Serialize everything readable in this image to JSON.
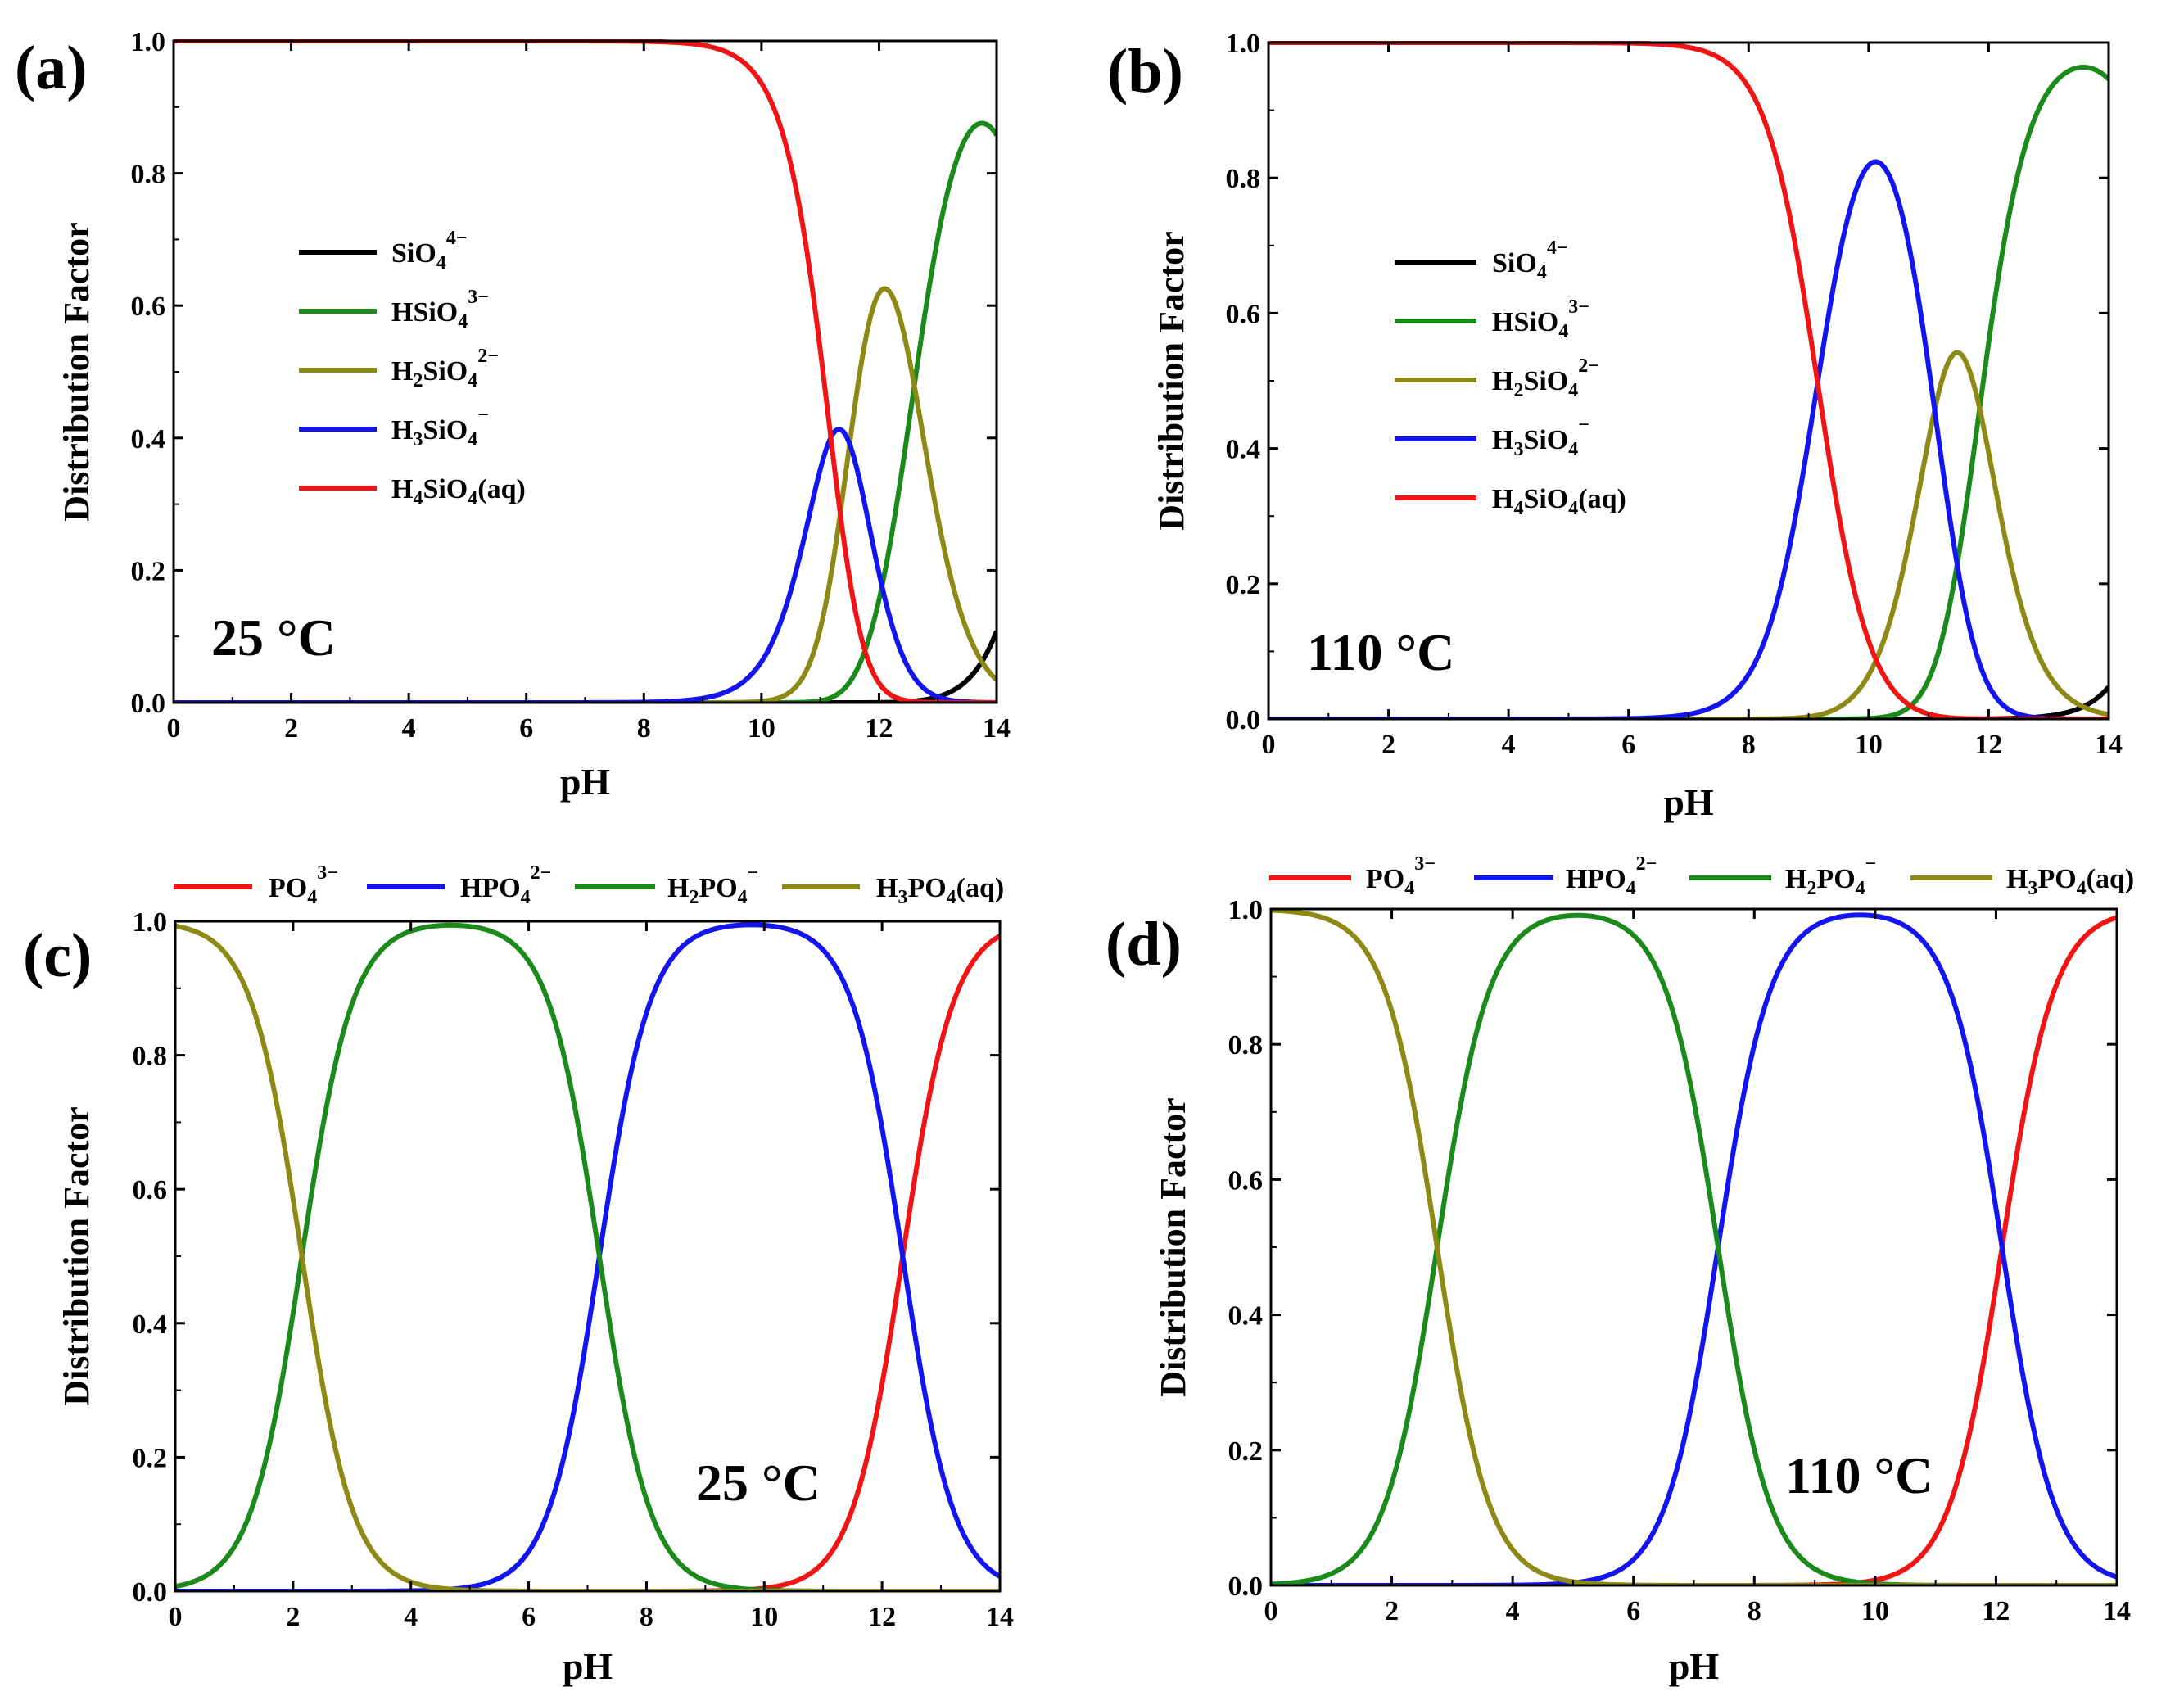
{
  "figure": {
    "panels": [
      {
        "id": "a",
        "label": "(a)",
        "temperature": "25 °C"
      },
      {
        "id": "b",
        "label": "(b)",
        "temperature": "110 °C"
      },
      {
        "id": "c",
        "label": "(c)",
        "temperature": "25 °C"
      },
      {
        "id": "d",
        "label": "(d)",
        "temperature": "110 °C"
      }
    ]
  },
  "chart_data": [
    {
      "panel": "a",
      "type": "line",
      "title": "",
      "panel_label": "(a)",
      "annotation": "25 °C",
      "xlabel": "pH",
      "ylabel": "Distribution Factor",
      "xlim": [
        0,
        14
      ],
      "ylim": [
        0,
        1
      ],
      "xticks": [
        0,
        2,
        4,
        6,
        8,
        10,
        12,
        14
      ],
      "yticks": [
        0.0,
        0.2,
        0.4,
        0.6,
        0.8,
        1.0
      ],
      "ytick_labels": [
        "0.0",
        "0.2",
        "0.4",
        "0.6",
        "0.8",
        "1.0"
      ],
      "legend_position": "middle-left",
      "model": {
        "kind": "speciation",
        "pKa": [
          11.18,
          11.5,
          12.6,
          14.9
        ]
      },
      "series": [
        {
          "name": "SiO4 4−",
          "label": [
            "SiO",
            "4",
            "4−"
          ],
          "species_index": 4,
          "color": "#000000"
        },
        {
          "name": "HSiO4 3−",
          "label": [
            "HSiO",
            "4",
            "3−"
          ],
          "species_index": 3,
          "color": "#1a8a1a"
        },
        {
          "name": "H2SiO4 2−",
          "label": [
            "H",
            "2",
            "SiO",
            "4",
            "2−"
          ],
          "species_index": 2,
          "color": "#8c8a14"
        },
        {
          "name": "H3SiO4 −",
          "label": [
            "H",
            "3",
            "SiO",
            "4",
            "−"
          ],
          "species_index": 1,
          "color": "#1414f0"
        },
        {
          "name": "H4SiO4(aq)",
          "label": [
            "H",
            "4",
            "SiO",
            "4",
            "(aq)"
          ],
          "species_index": 0,
          "color": "#f01414"
        }
      ]
    },
    {
      "panel": "b",
      "type": "line",
      "title": "",
      "panel_label": "(b)",
      "annotation": "110 °C",
      "xlabel": "pH",
      "ylabel": "Distribution Factor",
      "xlim": [
        0,
        14
      ],
      "ylim": [
        0,
        1
      ],
      "xticks": [
        0,
        2,
        4,
        6,
        8,
        10,
        12,
        14
      ],
      "yticks": [
        0.0,
        0.2,
        0.4,
        0.6,
        0.8,
        1.0
      ],
      "ytick_labels": [
        "0.0",
        "0.2",
        "0.4",
        "0.6",
        "0.8",
        "1.0"
      ],
      "legend_position": "middle-left",
      "model": {
        "kind": "speciation",
        "pKa": [
          9.15,
          11.1,
          11.85,
          15.3
        ]
      },
      "series": [
        {
          "name": "SiO4 4−",
          "label": [
            "SiO",
            "4",
            "4−"
          ],
          "species_index": 4,
          "color": "#000000"
        },
        {
          "name": "HSiO4 3−",
          "label": [
            "HSiO",
            "4",
            "3−"
          ],
          "species_index": 3,
          "color": "#1a8a1a"
        },
        {
          "name": "H2SiO4 2−",
          "label": [
            "H",
            "2",
            "SiO",
            "4",
            "2−"
          ],
          "species_index": 2,
          "color": "#8c8a14"
        },
        {
          "name": "H3SiO4 −",
          "label": [
            "H",
            "3",
            "SiO",
            "4",
            "−"
          ],
          "species_index": 1,
          "color": "#1414f0"
        },
        {
          "name": "H4SiO4(aq)",
          "label": [
            "H",
            "4",
            "SiO",
            "4",
            "(aq)"
          ],
          "species_index": 0,
          "color": "#f01414"
        }
      ]
    },
    {
      "panel": "c",
      "type": "line",
      "title": "",
      "panel_label": "(c)",
      "annotation": "25 °C",
      "xlabel": "pH",
      "ylabel": "Distribution Factor",
      "xlim": [
        0,
        14
      ],
      "ylim": [
        0,
        1
      ],
      "xticks": [
        0,
        2,
        4,
        6,
        8,
        10,
        12,
        14
      ],
      "yticks": [
        0.0,
        0.2,
        0.4,
        0.6,
        0.8,
        1.0
      ],
      "ytick_labels": [
        "0.0",
        "0.2",
        "0.4",
        "0.6",
        "0.8",
        "1.0"
      ],
      "legend_position": "top",
      "model": {
        "kind": "speciation",
        "pKa": [
          2.15,
          7.2,
          12.35
        ]
      },
      "series": [
        {
          "name": "PO4 3−",
          "label": [
            "PO",
            "4",
            "3−"
          ],
          "species_index": 3,
          "color": "#f01414"
        },
        {
          "name": "HPO4 2−",
          "label": [
            "HPO",
            "4",
            "2−"
          ],
          "species_index": 2,
          "color": "#1414f0"
        },
        {
          "name": "H2PO4 −",
          "label": [
            "H",
            "2",
            "PO",
            "4",
            "−"
          ],
          "species_index": 1,
          "color": "#1a8a1a"
        },
        {
          "name": "H3PO4(aq)",
          "label": [
            "H",
            "3",
            "PO",
            "4",
            "(aq)"
          ],
          "species_index": 0,
          "color": "#8c8a14"
        }
      ]
    },
    {
      "panel": "d",
      "type": "line",
      "title": "",
      "panel_label": "(d)",
      "annotation": "110 °C",
      "xlabel": "pH",
      "ylabel": "Distribution Factor",
      "xlim": [
        0,
        14
      ],
      "ylim": [
        0,
        1
      ],
      "xticks": [
        0,
        2,
        4,
        6,
        8,
        10,
        12,
        14
      ],
      "yticks": [
        0.0,
        0.2,
        0.4,
        0.6,
        0.8,
        1.0
      ],
      "ytick_labels": [
        "0.0",
        "0.2",
        "0.4",
        "0.6",
        "0.8",
        "1.0"
      ],
      "legend_position": "top",
      "model": {
        "kind": "speciation",
        "pKa": [
          2.75,
          7.4,
          12.1
        ]
      },
      "series": [
        {
          "name": "PO4 3−",
          "label": [
            "PO",
            "4",
            "3−"
          ],
          "species_index": 3,
          "color": "#f01414"
        },
        {
          "name": "HPO4 2−",
          "label": [
            "HPO",
            "4",
            "2−"
          ],
          "species_index": 2,
          "color": "#1414f0"
        },
        {
          "name": "H2PO4 −",
          "label": [
            "H",
            "2",
            "PO",
            "4",
            "−"
          ],
          "species_index": 1,
          "color": "#1a8a1a"
        },
        {
          "name": "H3PO4(aq)",
          "label": [
            "H",
            "3",
            "PO",
            "4",
            "(aq)"
          ],
          "species_index": 0,
          "color": "#8c8a14"
        }
      ]
    }
  ]
}
